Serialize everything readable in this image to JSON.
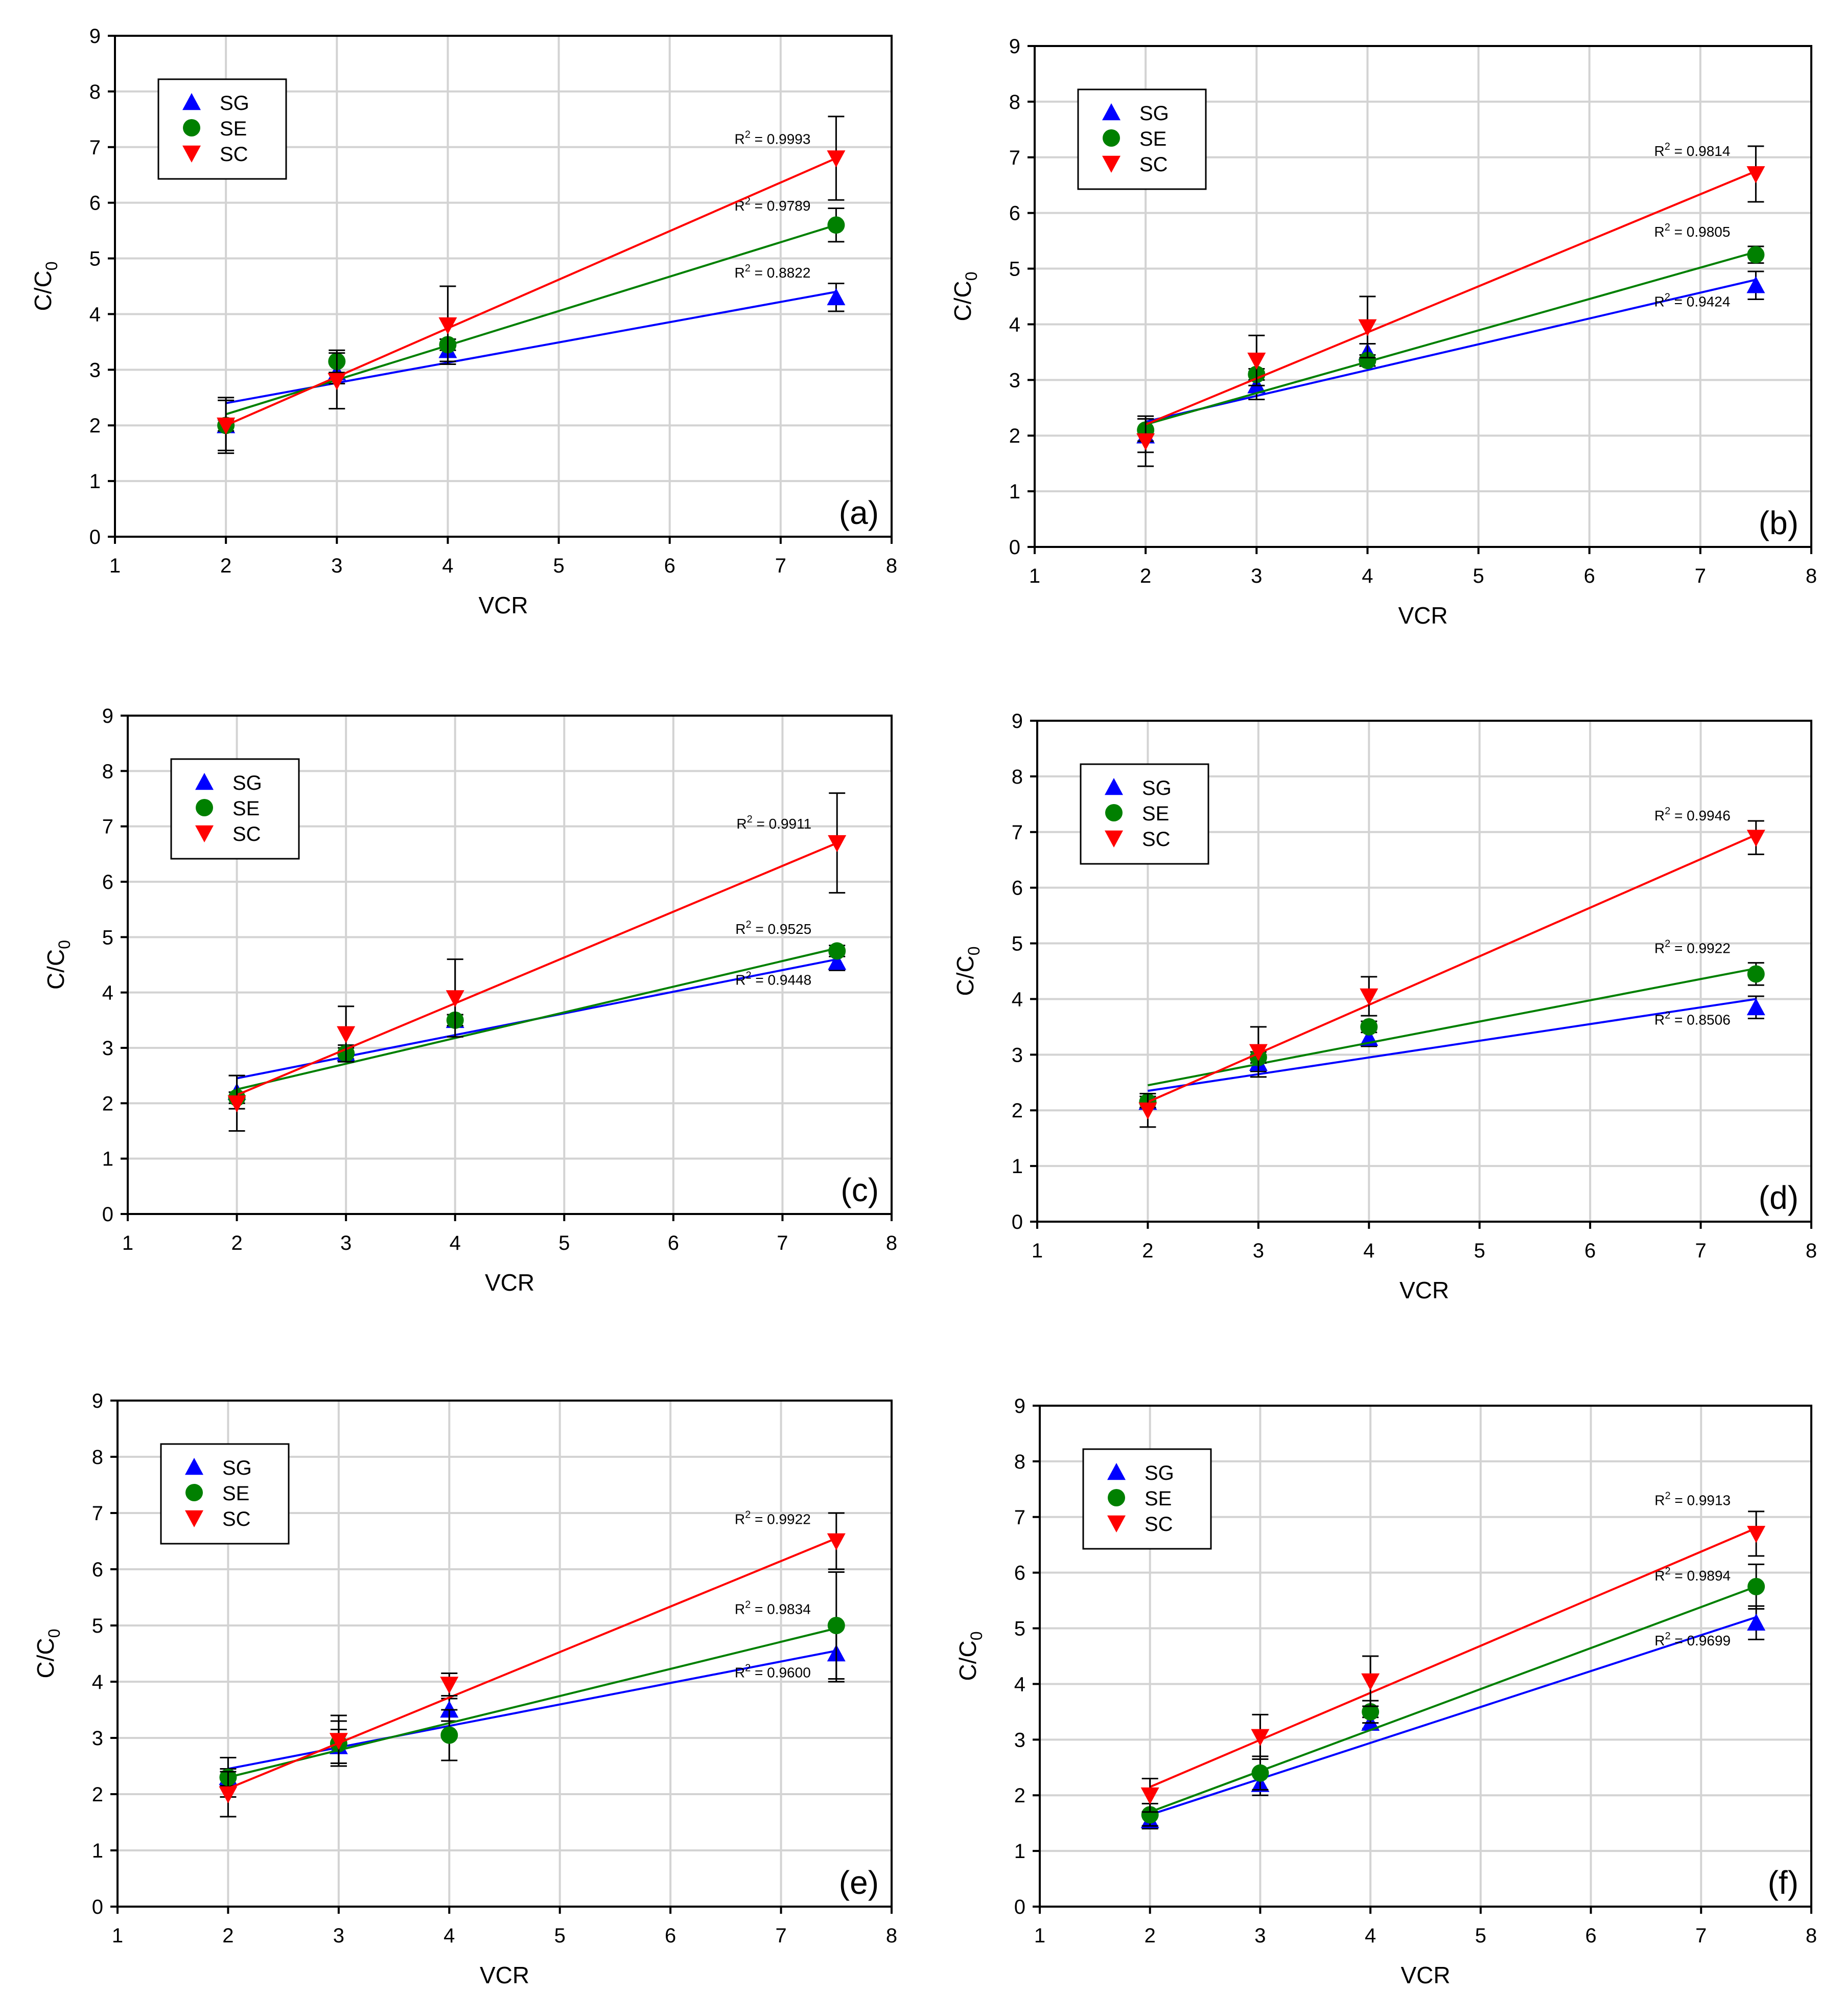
{
  "figure": {
    "series_names": [
      "SG",
      "SE",
      "SC"
    ],
    "colors": {
      "SG": "#0000ff",
      "SE": "#008000",
      "SC": "#ff0000"
    },
    "marker_icons": {
      "SG": "triangle-up-icon",
      "SE": "circle-icon",
      "SC": "triangle-down-icon"
    }
  },
  "chart_data": [
    {
      "type": "scatter",
      "panel_label": "(a)",
      "xlabel": "VCR",
      "ylabel": "C/C0",
      "xlim": [
        1,
        8
      ],
      "ylim": [
        0,
        9
      ],
      "xticks": [
        "1",
        "2",
        "3",
        "4",
        "5",
        "6",
        "7",
        "8"
      ],
      "yticks": [
        "0",
        "1",
        "2",
        "3",
        "4",
        "5",
        "6",
        "7",
        "8",
        "9"
      ],
      "grid": true,
      "legend_position": "top-left",
      "x": [
        2,
        3,
        4,
        7.5
      ],
      "series": [
        {
          "name": "SG",
          "values": [
            2.0,
            2.95,
            3.35,
            4.3
          ],
          "errors": [
            0.5,
            0.2,
            0.2,
            0.25
          ],
          "fit": [
            2.4,
            4.4
          ],
          "r2": "R2 = 0.8822"
        },
        {
          "name": "SE",
          "values": [
            2.0,
            3.15,
            3.45,
            5.6
          ],
          "errors": [
            0.1,
            0.2,
            0.1,
            0.3
          ],
          "fit": [
            2.2,
            5.6
          ],
          "r2": "R2 = 0.9789"
        },
        {
          "name": "SC",
          "values": [
            2.0,
            2.8,
            3.8,
            6.8
          ],
          "errors": [
            0.45,
            0.5,
            0.7,
            0.75
          ],
          "fit": [
            2.0,
            6.8
          ],
          "r2": "R2 = 0.9993"
        }
      ]
    },
    {
      "type": "scatter",
      "panel_label": "(b)",
      "xlabel": "VCR",
      "ylabel": "C/C0",
      "xlim": [
        1,
        8
      ],
      "ylim": [
        0,
        9
      ],
      "xticks": [
        "1",
        "2",
        "3",
        "4",
        "5",
        "6",
        "7",
        "8"
      ],
      "yticks": [
        "0",
        "1",
        "2",
        "3",
        "4",
        "5",
        "6",
        "7",
        "8",
        "9"
      ],
      "grid": true,
      "legend_position": "top-left",
      "x": [
        2,
        3,
        4,
        7.5
      ],
      "series": [
        {
          "name": "SG",
          "values": [
            2.0,
            2.9,
            3.5,
            4.7
          ],
          "errors": [
            0.3,
            0.25,
            0.15,
            0.25
          ],
          "fit": [
            2.25,
            4.8
          ],
          "r2": "R2 = 0.9424"
        },
        {
          "name": "SE",
          "values": [
            2.1,
            3.1,
            3.35,
            5.25
          ],
          "errors": [
            0.2,
            0.1,
            0.1,
            0.15
          ],
          "fit": [
            2.2,
            5.3
          ],
          "r2": "R2 = 0.9805"
        },
        {
          "name": "SC",
          "values": [
            1.9,
            3.35,
            3.95,
            6.7
          ],
          "errors": [
            0.45,
            0.45,
            0.55,
            0.5
          ],
          "fit": [
            2.2,
            6.75
          ],
          "r2": "R2 = 0.9814"
        }
      ]
    },
    {
      "type": "scatter",
      "panel_label": "(c)",
      "xlabel": "VCR",
      "ylabel": "C/C0",
      "xlim": [
        1,
        8
      ],
      "ylim": [
        0,
        9
      ],
      "xticks": [
        "1",
        "2",
        "3",
        "4",
        "5",
        "6",
        "7",
        "8"
      ],
      "yticks": [
        "0",
        "1",
        "2",
        "3",
        "4",
        "5",
        "6",
        "7",
        "8",
        "9"
      ],
      "grid": true,
      "legend_position": "top-left",
      "x": [
        2,
        3,
        4,
        7.5
      ],
      "series": [
        {
          "name": "SG",
          "values": [
            2.2,
            2.9,
            3.5,
            4.55
          ],
          "errors": [
            0.3,
            0.1,
            0.1,
            0.15
          ],
          "fit": [
            2.45,
            4.6
          ],
          "r2": "R2 = 0.9448"
        },
        {
          "name": "SE",
          "values": [
            2.1,
            2.9,
            3.5,
            4.75
          ],
          "errors": [
            0.1,
            0.15,
            0.1,
            0.1
          ],
          "fit": [
            2.25,
            4.8
          ],
          "r2": "R2 = 0.9525"
        },
        {
          "name": "SC",
          "values": [
            2.0,
            3.25,
            3.9,
            6.7
          ],
          "errors": [
            0.5,
            0.5,
            0.7,
            0.9
          ],
          "fit": [
            2.15,
            6.7
          ],
          "r2": "R2 = 0.9911"
        }
      ]
    },
    {
      "type": "scatter",
      "panel_label": "(d)",
      "xlabel": "VCR",
      "ylabel": "C/C0",
      "xlim": [
        1,
        8
      ],
      "ylim": [
        0,
        9
      ],
      "xticks": [
        "1",
        "2",
        "3",
        "4",
        "5",
        "6",
        "7",
        "8"
      ],
      "yticks": [
        "0",
        "1",
        "2",
        "3",
        "4",
        "5",
        "6",
        "7",
        "8",
        "9"
      ],
      "grid": true,
      "legend_position": "top-left",
      "x": [
        2,
        3,
        4,
        7.5
      ],
      "series": [
        {
          "name": "SG",
          "values": [
            2.15,
            2.85,
            3.3,
            3.85
          ],
          "errors": [
            0.1,
            0.15,
            0.15,
            0.2
          ],
          "fit": [
            2.35,
            4.0
          ],
          "r2": "R2 = 0.8506"
        },
        {
          "name": "SE",
          "values": [
            2.15,
            2.95,
            3.5,
            4.45
          ],
          "errors": [
            0.1,
            0.1,
            0.1,
            0.2
          ],
          "fit": [
            2.45,
            4.55
          ],
          "r2": "R2 = 0.9922"
        },
        {
          "name": "SC",
          "values": [
            2.0,
            3.05,
            4.05,
            6.9
          ],
          "errors": [
            0.3,
            0.45,
            0.35,
            0.3
          ],
          "fit": [
            2.15,
            6.95
          ],
          "r2": "R2 = 0.9946"
        }
      ]
    },
    {
      "type": "scatter",
      "panel_label": "(e)",
      "xlabel": "VCR",
      "ylabel": "C/C0",
      "xlim": [
        1,
        8
      ],
      "ylim": [
        0,
        9
      ],
      "xticks": [
        "1",
        "2",
        "3",
        "4",
        "5",
        "6",
        "7",
        "8"
      ],
      "yticks": [
        "0",
        "1",
        "2",
        "3",
        "4",
        "5",
        "6",
        "7",
        "8",
        "9"
      ],
      "grid": true,
      "legend_position": "top-left",
      "x": [
        2,
        3,
        4,
        7.5
      ],
      "series": [
        {
          "name": "SG",
          "values": [
            2.3,
            2.85,
            3.5,
            4.5
          ],
          "errors": [
            0.35,
            0.3,
            0.2,
            0.5
          ],
          "fit": [
            2.45,
            4.55
          ],
          "r2": "R2 = 0.9600"
        },
        {
          "name": "SE",
          "values": [
            2.3,
            2.9,
            3.05,
            5.0
          ],
          "errors": [
            0.15,
            0.4,
            0.45,
            0.95
          ],
          "fit": [
            2.3,
            4.95
          ],
          "r2": "R2 = 0.9834"
        },
        {
          "name": "SC",
          "values": [
            2.0,
            2.95,
            3.95,
            6.5
          ],
          "errors": [
            0.4,
            0.45,
            0.2,
            0.5
          ],
          "fit": [
            2.1,
            6.55
          ],
          "r2": "R2 = 0.9922"
        }
      ]
    },
    {
      "type": "scatter",
      "panel_label": "(f)",
      "xlabel": "VCR",
      "ylabel": "C/C0",
      "xlim": [
        1,
        8
      ],
      "ylim": [
        0,
        9
      ],
      "xticks": [
        "1",
        "2",
        "3",
        "4",
        "5",
        "6",
        "7",
        "8"
      ],
      "yticks": [
        "0",
        "1",
        "2",
        "3",
        "4",
        "5",
        "6",
        "7",
        "8",
        "9"
      ],
      "grid": true,
      "legend_position": "top-left",
      "x": [
        2,
        3,
        4,
        7.5
      ],
      "series": [
        {
          "name": "SG",
          "values": [
            1.55,
            2.2,
            3.3,
            5.1
          ],
          "errors": [
            0.15,
            0.2,
            0.1,
            0.3
          ],
          "fit": [
            1.65,
            5.2
          ],
          "r2": "R2 = 0.9699"
        },
        {
          "name": "SE",
          "values": [
            1.65,
            2.4,
            3.5,
            5.75
          ],
          "errors": [
            0.2,
            0.3,
            0.2,
            0.4
          ],
          "fit": [
            1.7,
            5.75
          ],
          "r2": "R2 = 0.9894"
        },
        {
          "name": "SC",
          "values": [
            2.0,
            3.05,
            4.05,
            6.7
          ],
          "errors": [
            0.3,
            0.4,
            0.45,
            0.4
          ],
          "fit": [
            2.15,
            6.8
          ],
          "r2": "R2 = 0.9913"
        }
      ]
    }
  ]
}
